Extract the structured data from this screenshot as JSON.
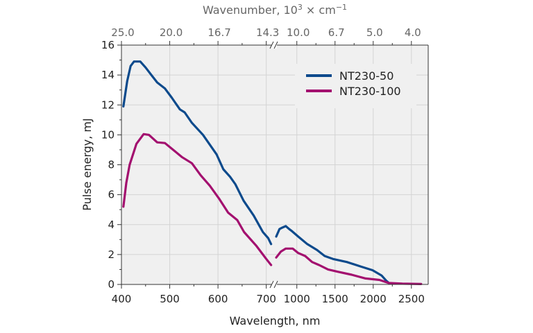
{
  "chart_data": {
    "type": "line",
    "xlabel": "Wavelength, nm",
    "ylabel": "Pulse energy, mJ",
    "top_xlabel_main": "Wavenumber, 10",
    "top_xlabel_sup": "3",
    "top_xlabel_unit": " × cm",
    "top_xlabel_unit_sup": "−1",
    "ylim": [
      0,
      16
    ],
    "yticks": [
      "0",
      "2",
      "4",
      "6",
      "8",
      "10",
      "12",
      "14",
      "16"
    ],
    "x_axis_break": true,
    "x_segments": [
      {
        "xlim": [
          400,
          712
        ],
        "xticks": [
          400,
          500,
          600,
          700
        ],
        "xtick_labels": [
          "400",
          "500",
          "600",
          "700"
        ],
        "top_tick_labels": [
          "25.0",
          "20.0",
          "16.7",
          "14.3"
        ]
      },
      {
        "xlim": [
          730,
          2720
        ],
        "xticks": [
          1000,
          1500,
          2000,
          2500
        ],
        "xtick_labels": [
          "1000",
          "1500",
          "2000",
          "2500"
        ],
        "top_tick_labels": [
          "10.0",
          "6.7",
          "5.0",
          "4.0"
        ]
      }
    ],
    "grid": true,
    "legend_position": "top-right",
    "series": [
      {
        "name": "NT230-50",
        "color": "#0d4a8c",
        "segments": [
          [
            [
              404,
              11.9
            ],
            [
              412,
              13.6
            ],
            [
              419,
              14.6
            ],
            [
              426,
              14.9
            ],
            [
              439,
              14.9
            ],
            [
              450,
              14.5
            ],
            [
              462,
              14.0
            ],
            [
              474,
              13.5
            ],
            [
              490,
              13.1
            ],
            [
              504,
              12.5
            ],
            [
              521,
              11.7
            ],
            [
              531,
              11.5
            ],
            [
              546,
              10.8
            ],
            [
              569,
              10.0
            ],
            [
              597,
              8.7
            ],
            [
              611,
              7.7
            ],
            [
              625,
              7.2
            ],
            [
              636,
              6.7
            ],
            [
              653,
              5.6
            ],
            [
              674,
              4.6
            ],
            [
              693,
              3.5
            ],
            [
              704,
              3.1
            ],
            [
              710,
              2.7
            ]
          ],
          [
            [
              730,
              3.2
            ],
            [
              773,
              3.7
            ],
            [
              809,
              3.8
            ],
            [
              855,
              3.9
            ],
            [
              900,
              3.7
            ],
            [
              927,
              3.6
            ],
            [
              1018,
              3.2
            ],
            [
              1136,
              2.7
            ],
            [
              1264,
              2.3
            ],
            [
              1364,
              1.9
            ],
            [
              1473,
              1.7
            ],
            [
              1655,
              1.5
            ],
            [
              1836,
              1.2
            ],
            [
              1991,
              0.95
            ],
            [
              2109,
              0.6
            ],
            [
              2170,
              0.25
            ],
            [
              2210,
              0.08
            ],
            [
              2240,
              0.05
            ]
          ]
        ]
      },
      {
        "name": "NT230-100",
        "color": "#a3106f",
        "segments": [
          [
            [
              404,
              5.2
            ],
            [
              410,
              6.8
            ],
            [
              417,
              8.0
            ],
            [
              431,
              9.4
            ],
            [
              446,
              10.05
            ],
            [
              457,
              10.0
            ],
            [
              474,
              9.5
            ],
            [
              490,
              9.45
            ],
            [
              507,
              9.0
            ],
            [
              526,
              8.5
            ],
            [
              546,
              8.1
            ],
            [
              564,
              7.3
            ],
            [
              583,
              6.6
            ],
            [
              603,
              5.7
            ],
            [
              621,
              4.8
            ],
            [
              640,
              4.3
            ],
            [
              654,
              3.5
            ],
            [
              679,
              2.6
            ],
            [
              700,
              1.7
            ],
            [
              710,
              1.3
            ]
          ],
          [
            [
              730,
              1.8
            ],
            [
              791,
              2.2
            ],
            [
              855,
              2.4
            ],
            [
              945,
              2.4
            ],
            [
              1018,
              2.1
            ],
            [
              1109,
              1.9
            ],
            [
              1200,
              1.5
            ],
            [
              1291,
              1.3
            ],
            [
              1409,
              1.0
            ],
            [
              1536,
              0.85
            ],
            [
              1718,
              0.65
            ],
            [
              1900,
              0.4
            ],
            [
              2082,
              0.3
            ],
            [
              2200,
              0.1
            ],
            [
              2382,
              0.05
            ],
            [
              2627,
              0.03
            ]
          ]
        ]
      }
    ]
  }
}
